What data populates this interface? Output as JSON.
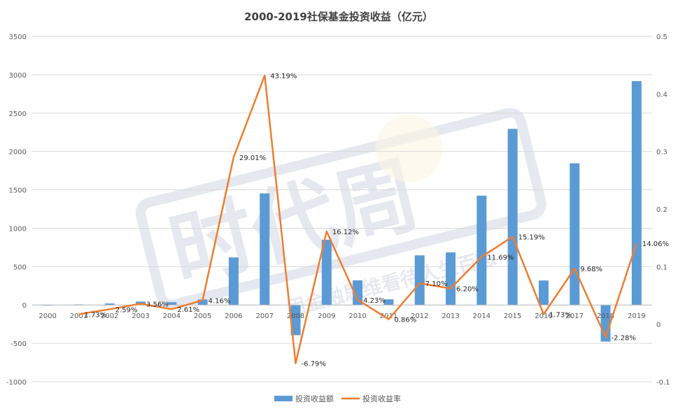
{
  "chart_data": {
    "type": "bar",
    "title": "2000-2019社保基金投资收益（亿元）",
    "categories": [
      "2000",
      "2001",
      "2002",
      "2003",
      "2004",
      "2005",
      "2006",
      "2007",
      "2008",
      "2009",
      "2010",
      "2011",
      "2012",
      "2013",
      "2014",
      "2015",
      "2016",
      "2017",
      "2018",
      "2019"
    ],
    "series": [
      {
        "name": "投资收益额",
        "type": "bar",
        "axis": "left",
        "color": "#5B9BD5",
        "values": [
          0.17,
          7.42,
          19.76,
          44.71,
          36.72,
          71.22,
          619.79,
          1453.5,
          -393.72,
          850.49,
          321.22,
          73.37,
          646.59,
          685.87,
          1424.6,
          2294.61,
          319.4,
          1846.14,
          -476.85,
          2917.18
        ]
      },
      {
        "name": "投资收益率",
        "type": "line",
        "axis": "right",
        "color": "#ED7D31",
        "values": [
          null,
          0.0173,
          0.0259,
          0.0356,
          0.0261,
          0.0416,
          0.2901,
          0.4319,
          -0.0679,
          0.1612,
          0.0423,
          0.0086,
          0.071,
          0.062,
          0.1169,
          0.1519,
          0.0173,
          0.0968,
          -0.0228,
          0.1406
        ],
        "labels": [
          "",
          "1.73%",
          "2.59%",
          "3.56%",
          "2.61%",
          "4.16%",
          "29.01%",
          "43.19%",
          "-6.79%",
          "16.12%",
          "4.23%",
          "0.86%",
          "7.10%",
          "6.20%",
          "11.69%",
          "15.19%",
          "1.73%",
          "9.68%",
          "-2.28%",
          "14.06%"
        ]
      }
    ],
    "y_left": {
      "min": -1000,
      "max": 3500,
      "ticks": [
        "-1000",
        "-500",
        "0",
        "500",
        "1000",
        "1500",
        "2000",
        "2500",
        "3000",
        "3500"
      ]
    },
    "y_right": {
      "min": -0.1,
      "max": 0.5,
      "ticks": [
        "-0.1",
        "0",
        "0.1",
        "0.2",
        "0.3",
        "0.4",
        "0.5"
      ]
    },
    "grid": true,
    "legend": "bottom"
  },
  "watermark": {
    "brand": "时代周",
    "slogan": "用金融思维看待人生百态"
  }
}
